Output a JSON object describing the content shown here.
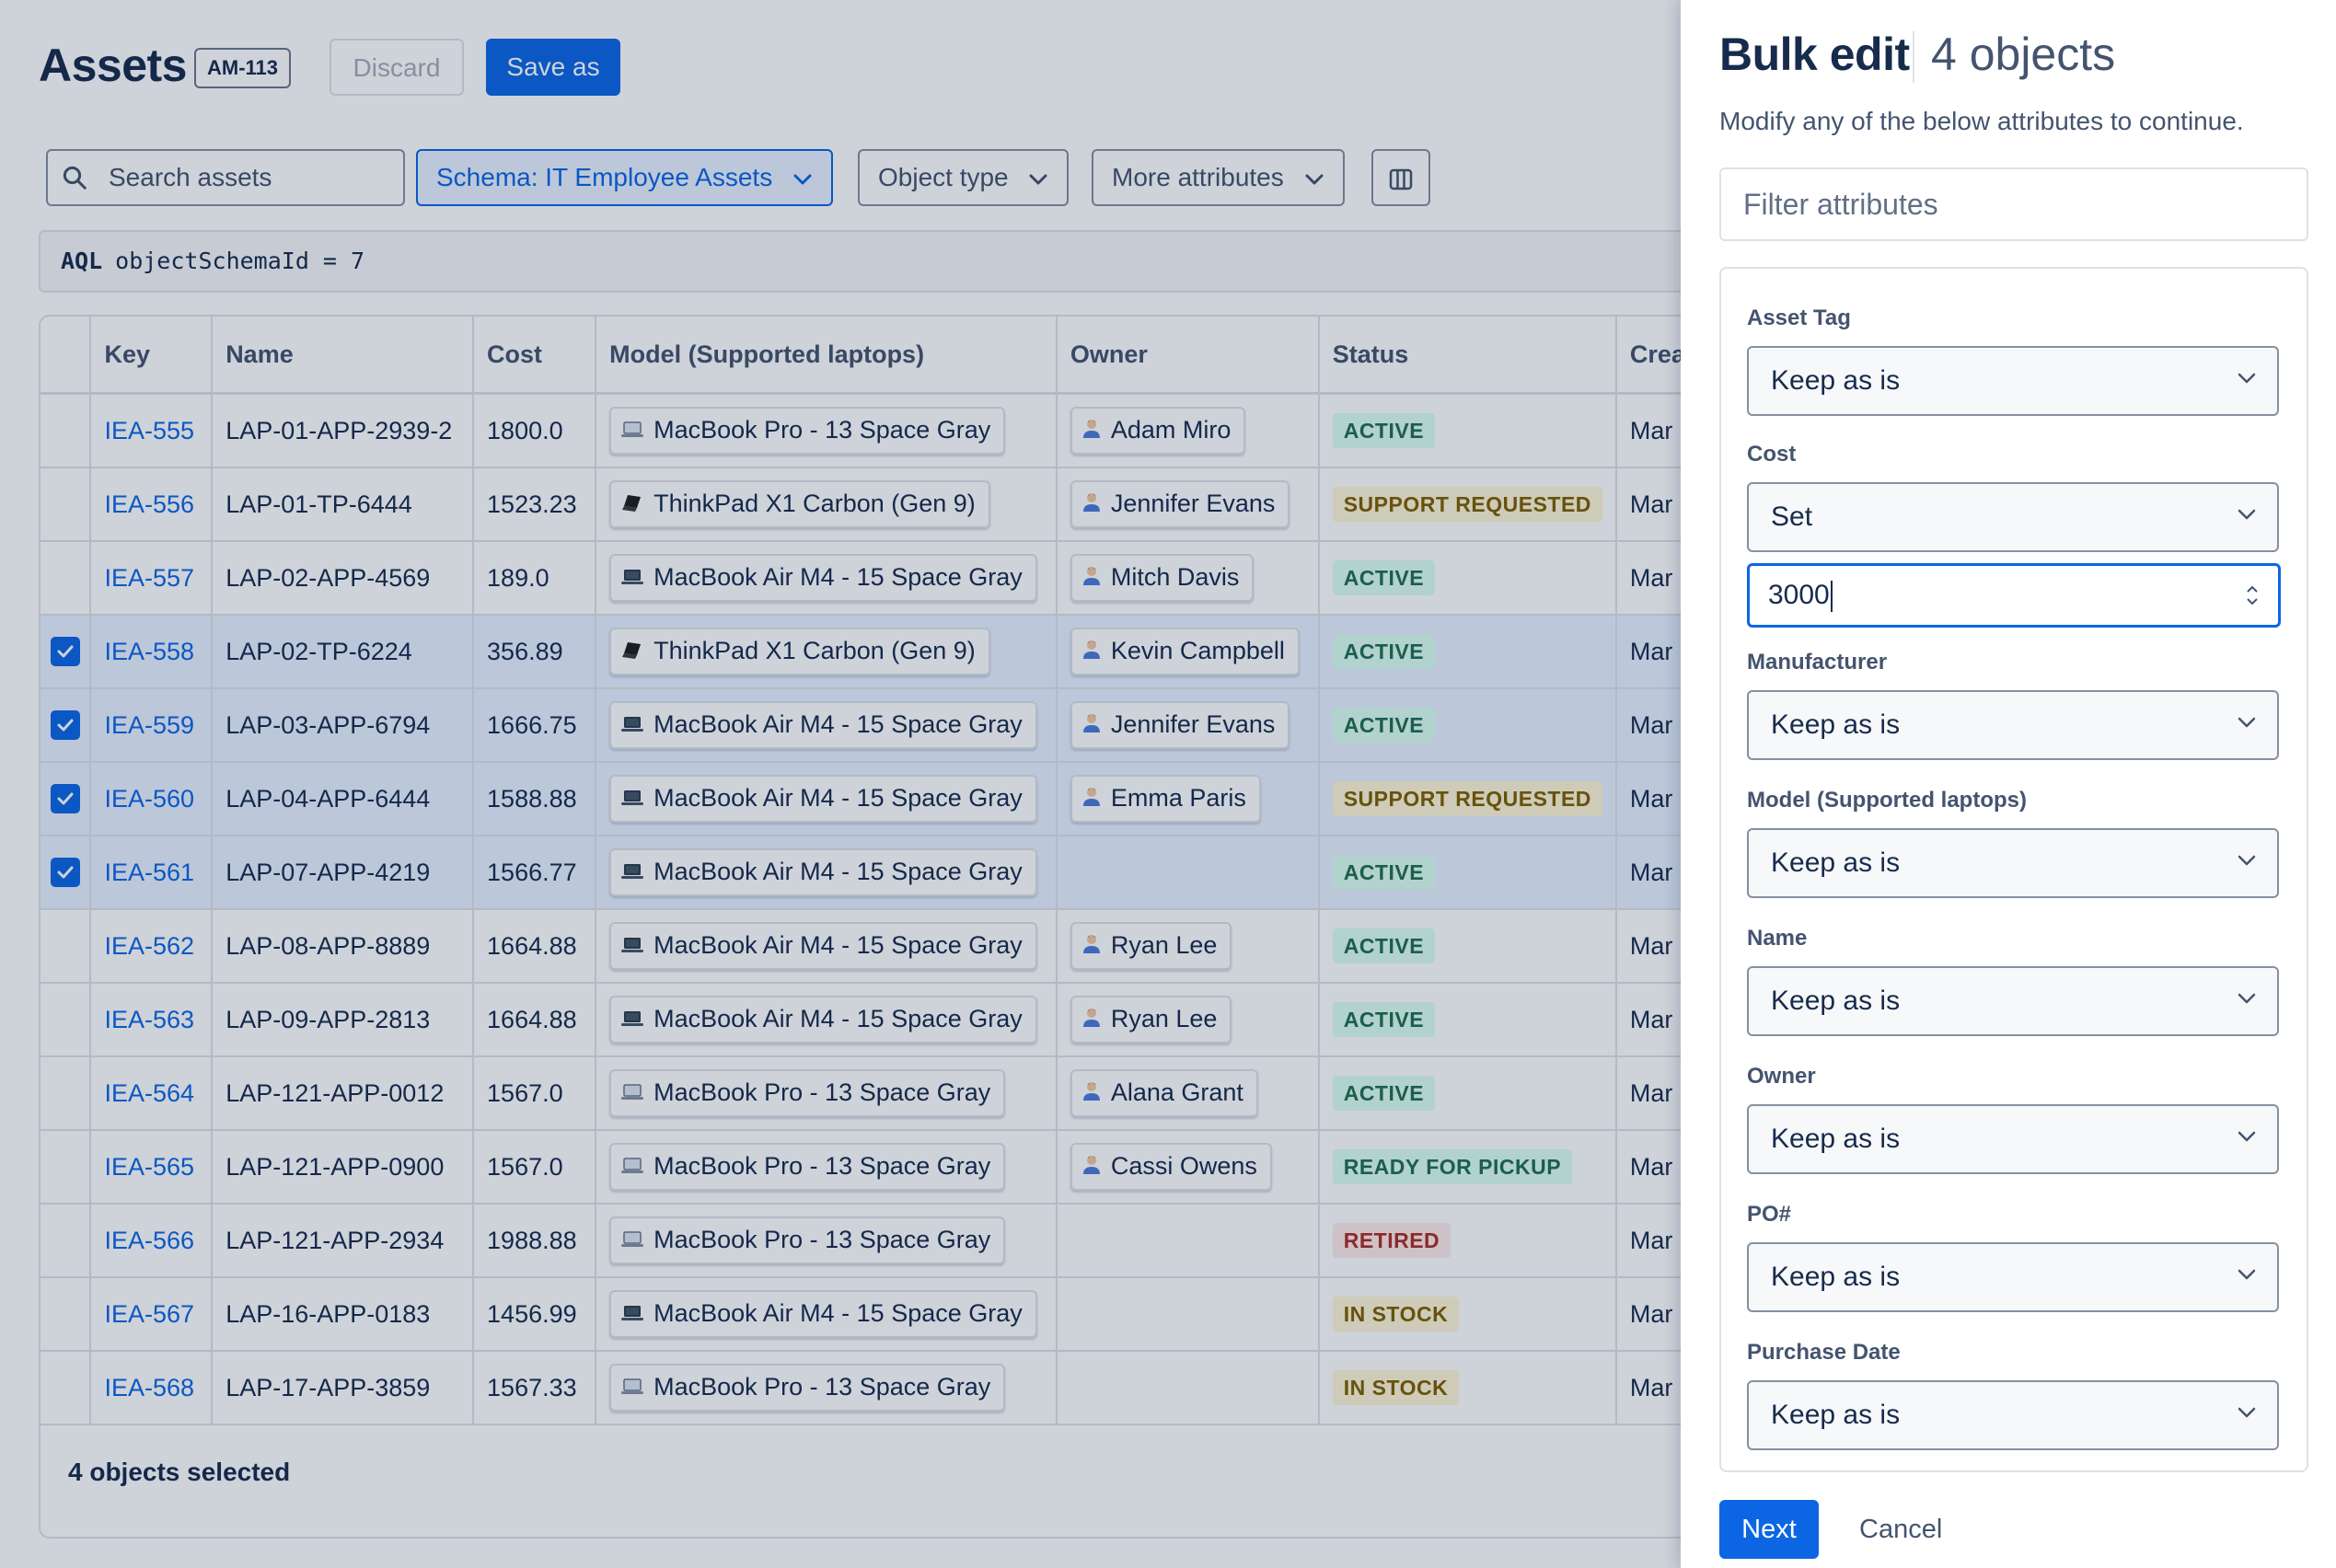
{
  "header": {
    "title": "Assets",
    "key": "AM-113",
    "discard_label": "Discard",
    "save_label": "Save as"
  },
  "filters": {
    "search_placeholder": "Search assets",
    "schema_label": "Schema: IT Employee Assets",
    "object_type_label": "Object type",
    "more_attributes_label": "More attributes",
    "columns_icon": "columns-icon"
  },
  "aql": {
    "prefix": "AQL",
    "query": "objectSchemaId = 7"
  },
  "table": {
    "columns": [
      "",
      "Key",
      "Name",
      "Cost",
      "Model (Supported laptops)",
      "Owner",
      "Status",
      "Crea"
    ],
    "rows": [
      {
        "selected": false,
        "key": "IEA-555",
        "name": "LAP-01-APP-2939-2",
        "cost": "1800.0",
        "model": "MacBook Pro - 13 Space Gray",
        "model_icon": "macbook-pro-icon",
        "owner": "Adam Miro",
        "status": "ACTIVE",
        "status_kind": "active",
        "created": "Mar"
      },
      {
        "selected": false,
        "key": "IEA-556",
        "name": "LAP-01-TP-6444",
        "cost": "1523.23",
        "model": "ThinkPad X1 Carbon (Gen 9)",
        "model_icon": "thinkpad-icon",
        "owner": "Jennifer Evans",
        "status": "SUPPORT REQUESTED",
        "status_kind": "support",
        "created": "Mar"
      },
      {
        "selected": false,
        "key": "IEA-557",
        "name": "LAP-02-APP-4569",
        "cost": "189.0",
        "model": "MacBook Air M4 - 15 Space Gray",
        "model_icon": "macbook-air-icon",
        "owner": "Mitch Davis",
        "status": "ACTIVE",
        "status_kind": "active",
        "created": "Mar"
      },
      {
        "selected": true,
        "key": "IEA-558",
        "name": "LAP-02-TP-6224",
        "cost": "356.89",
        "model": "ThinkPad X1 Carbon (Gen 9)",
        "model_icon": "thinkpad-icon",
        "owner": "Kevin Campbell",
        "status": "ACTIVE",
        "status_kind": "active",
        "created": "Mar"
      },
      {
        "selected": true,
        "key": "IEA-559",
        "name": "LAP-03-APP-6794",
        "cost": "1666.75",
        "model": "MacBook Air M4 - 15 Space Gray",
        "model_icon": "macbook-air-icon",
        "owner": "Jennifer Evans",
        "status": "ACTIVE",
        "status_kind": "active",
        "created": "Mar"
      },
      {
        "selected": true,
        "key": "IEA-560",
        "name": "LAP-04-APP-6444",
        "cost": "1588.88",
        "model": "MacBook Air M4 - 15 Space Gray",
        "model_icon": "macbook-air-icon",
        "owner": "Emma Paris",
        "status": "SUPPORT REQUESTED",
        "status_kind": "support",
        "created": "Mar"
      },
      {
        "selected": true,
        "key": "IEA-561",
        "name": "LAP-07-APP-4219",
        "cost": "1566.77",
        "model": "MacBook Air M4 - 15 Space Gray",
        "model_icon": "macbook-air-icon",
        "owner": "",
        "status": "ACTIVE",
        "status_kind": "active",
        "created": "Mar"
      },
      {
        "selected": false,
        "key": "IEA-562",
        "name": "LAP-08-APP-8889",
        "cost": "1664.88",
        "model": "MacBook Air M4 - 15 Space Gray",
        "model_icon": "macbook-air-icon",
        "owner": "Ryan Lee",
        "status": "ACTIVE",
        "status_kind": "active",
        "created": "Mar"
      },
      {
        "selected": false,
        "key": "IEA-563",
        "name": "LAP-09-APP-2813",
        "cost": "1664.88",
        "model": "MacBook Air M4 - 15 Space Gray",
        "model_icon": "macbook-air-icon",
        "owner": "Ryan Lee",
        "status": "ACTIVE",
        "status_kind": "active",
        "created": "Mar"
      },
      {
        "selected": false,
        "key": "IEA-564",
        "name": "LAP-121-APP-0012",
        "cost": "1567.0",
        "model": "MacBook Pro - 13 Space Gray",
        "model_icon": "macbook-pro-icon",
        "owner": "Alana Grant",
        "status": "ACTIVE",
        "status_kind": "active",
        "created": "Mar"
      },
      {
        "selected": false,
        "key": "IEA-565",
        "name": "LAP-121-APP-0900",
        "cost": "1567.0",
        "model": "MacBook Pro - 13 Space Gray",
        "model_icon": "macbook-pro-icon",
        "owner": "Cassi Owens",
        "status": "READY FOR PICKUP",
        "status_kind": "ready",
        "created": "Mar"
      },
      {
        "selected": false,
        "key": "IEA-566",
        "name": "LAP-121-APP-2934",
        "cost": "1988.88",
        "model": "MacBook Pro - 13 Space Gray",
        "model_icon": "macbook-pro-icon",
        "owner": "",
        "status": "RETIRED",
        "status_kind": "retired",
        "created": "Mar"
      },
      {
        "selected": false,
        "key": "IEA-567",
        "name": "LAP-16-APP-0183",
        "cost": "1456.99",
        "model": "MacBook Air M4 - 15 Space Gray",
        "model_icon": "macbook-air-icon",
        "owner": "",
        "status": "IN STOCK",
        "status_kind": "stock",
        "created": "Mar"
      },
      {
        "selected": false,
        "key": "IEA-568",
        "name": "LAP-17-APP-3859",
        "cost": "1567.33",
        "model": "MacBook Pro - 13 Space Gray",
        "model_icon": "macbook-pro-icon",
        "owner": "",
        "status": "IN STOCK",
        "status_kind": "stock",
        "created": "Mar"
      }
    ],
    "selection_summary": "4 objects selected"
  },
  "drawer": {
    "title": "Bulk edit",
    "count": "4 objects",
    "subtitle": "Modify any of the below attributes to continue.",
    "filter_placeholder": "Filter attributes",
    "fields": [
      {
        "label": "Asset Tag",
        "value": "Keep as is"
      },
      {
        "label": "Cost",
        "value": "Set",
        "input": "3000"
      },
      {
        "label": "Manufacturer",
        "value": "Keep as is"
      },
      {
        "label": "Model (Supported laptops)",
        "value": "Keep as is"
      },
      {
        "label": "Name",
        "value": "Keep as is"
      },
      {
        "label": "Owner",
        "value": "Keep as is"
      },
      {
        "label": "PO#",
        "value": "Keep as is"
      },
      {
        "label": "Purchase Date",
        "value": "Keep as is"
      }
    ],
    "next_label": "Next",
    "cancel_label": "Cancel"
  },
  "colors": {
    "primary": "#0c66e4",
    "selected_row": "#e9f2ff",
    "overlay": "rgba(9,30,66,0.2)"
  }
}
